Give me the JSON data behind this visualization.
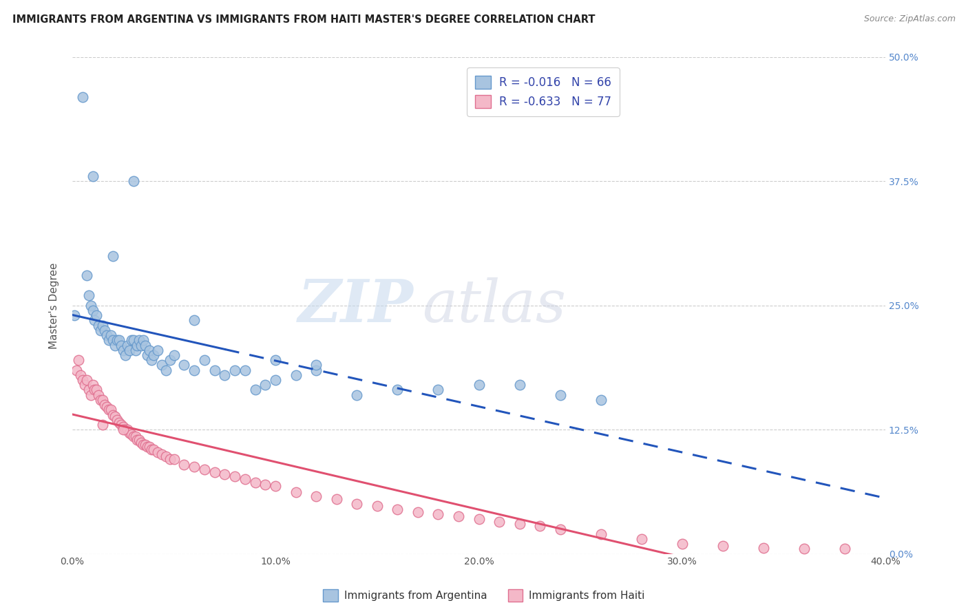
{
  "title": "IMMIGRANTS FROM ARGENTINA VS IMMIGRANTS FROM HAITI MASTER'S DEGREE CORRELATION CHART",
  "source": "Source: ZipAtlas.com",
  "ylabel": "Master's Degree",
  "xlim": [
    0.0,
    0.4
  ],
  "ylim": [
    0.0,
    0.5
  ],
  "xticks": [
    0.0,
    0.1,
    0.2,
    0.3,
    0.4
  ],
  "yticks": [
    0.0,
    0.125,
    0.25,
    0.375,
    0.5
  ],
  "ytick_labels_right": [
    "0.0%",
    "12.5%",
    "25.0%",
    "37.5%",
    "50.0%"
  ],
  "argentina_color": "#a8c4e0",
  "argentina_edge": "#6699cc",
  "haiti_color": "#f4b8c8",
  "haiti_edge": "#e07090",
  "argentina_line_color": "#2255bb",
  "haiti_line_color": "#e05070",
  "argentina_R": -0.016,
  "argentina_N": 66,
  "haiti_R": -0.633,
  "haiti_N": 77,
  "watermark_zip": "ZIP",
  "watermark_atlas": "atlas",
  "legend_label_argentina": "Immigrants from Argentina",
  "legend_label_haiti": "Immigrants from Haiti",
  "argentina_x": [
    0.001,
    0.005,
    0.007,
    0.008,
    0.009,
    0.01,
    0.011,
    0.012,
    0.013,
    0.014,
    0.015,
    0.016,
    0.017,
    0.018,
    0.019,
    0.02,
    0.021,
    0.022,
    0.023,
    0.024,
    0.025,
    0.026,
    0.027,
    0.028,
    0.029,
    0.03,
    0.031,
    0.032,
    0.033,
    0.034,
    0.035,
    0.036,
    0.037,
    0.038,
    0.039,
    0.04,
    0.042,
    0.044,
    0.046,
    0.048,
    0.05,
    0.055,
    0.06,
    0.065,
    0.07,
    0.075,
    0.08,
    0.085,
    0.09,
    0.095,
    0.1,
    0.11,
    0.12,
    0.14,
    0.16,
    0.18,
    0.2,
    0.22,
    0.24,
    0.26,
    0.01,
    0.02,
    0.03,
    0.06,
    0.1,
    0.12
  ],
  "argentina_y": [
    0.24,
    0.46,
    0.28,
    0.26,
    0.25,
    0.245,
    0.235,
    0.24,
    0.23,
    0.225,
    0.23,
    0.225,
    0.22,
    0.215,
    0.22,
    0.215,
    0.21,
    0.215,
    0.215,
    0.21,
    0.205,
    0.2,
    0.21,
    0.205,
    0.215,
    0.215,
    0.205,
    0.21,
    0.215,
    0.21,
    0.215,
    0.21,
    0.2,
    0.205,
    0.195,
    0.2,
    0.205,
    0.19,
    0.185,
    0.195,
    0.2,
    0.19,
    0.185,
    0.195,
    0.185,
    0.18,
    0.185,
    0.185,
    0.165,
    0.17,
    0.175,
    0.18,
    0.185,
    0.16,
    0.165,
    0.165,
    0.17,
    0.17,
    0.16,
    0.155,
    0.38,
    0.3,
    0.375,
    0.235,
    0.195,
    0.19
  ],
  "haiti_x": [
    0.002,
    0.003,
    0.004,
    0.005,
    0.006,
    0.007,
    0.008,
    0.009,
    0.01,
    0.011,
    0.012,
    0.013,
    0.014,
    0.015,
    0.016,
    0.017,
    0.018,
    0.019,
    0.02,
    0.021,
    0.022,
    0.023,
    0.024,
    0.025,
    0.026,
    0.027,
    0.028,
    0.029,
    0.03,
    0.031,
    0.032,
    0.033,
    0.034,
    0.035,
    0.036,
    0.037,
    0.038,
    0.039,
    0.04,
    0.042,
    0.044,
    0.046,
    0.048,
    0.05,
    0.055,
    0.06,
    0.065,
    0.07,
    0.075,
    0.08,
    0.085,
    0.09,
    0.095,
    0.1,
    0.11,
    0.12,
    0.13,
    0.14,
    0.15,
    0.16,
    0.17,
    0.18,
    0.19,
    0.2,
    0.21,
    0.22,
    0.23,
    0.24,
    0.26,
    0.28,
    0.3,
    0.32,
    0.34,
    0.36,
    0.38,
    0.015,
    0.025
  ],
  "haiti_y": [
    0.185,
    0.195,
    0.18,
    0.175,
    0.17,
    0.175,
    0.165,
    0.16,
    0.17,
    0.165,
    0.165,
    0.16,
    0.155,
    0.155,
    0.15,
    0.148,
    0.145,
    0.145,
    0.14,
    0.138,
    0.135,
    0.132,
    0.13,
    0.128,
    0.125,
    0.125,
    0.122,
    0.12,
    0.118,
    0.118,
    0.115,
    0.115,
    0.112,
    0.11,
    0.11,
    0.108,
    0.108,
    0.105,
    0.105,
    0.102,
    0.1,
    0.098,
    0.095,
    0.095,
    0.09,
    0.088,
    0.085,
    0.082,
    0.08,
    0.078,
    0.075,
    0.072,
    0.07,
    0.068,
    0.062,
    0.058,
    0.055,
    0.05,
    0.048,
    0.045,
    0.042,
    0.04,
    0.038,
    0.035,
    0.032,
    0.03,
    0.028,
    0.025,
    0.02,
    0.015,
    0.01,
    0.008,
    0.006,
    0.005,
    0.005,
    0.13,
    0.125
  ],
  "background_color": "#ffffff",
  "grid_color": "#cccccc"
}
